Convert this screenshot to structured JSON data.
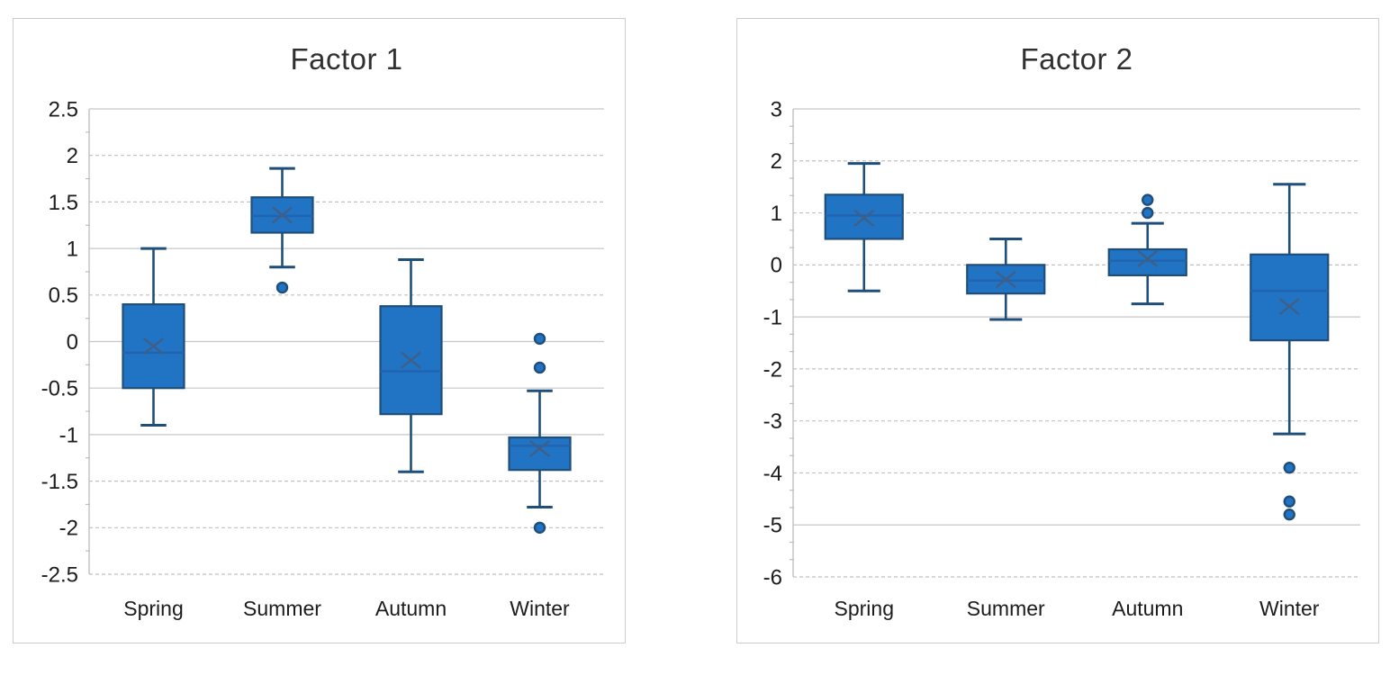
{
  "page": {
    "background": "#ffffff"
  },
  "colors": {
    "box_fill": "#2173C4",
    "box_border": "#1F4E79",
    "whisker": "#1F4E79",
    "median_line": "#2163AE",
    "mean_marker": "#3F5F87",
    "outlier_fill": "#2173C4",
    "outlier_ring": "#1F4E79",
    "gridline_dashed": "#C1C1C1",
    "gridline_solid": "#C7C7C7",
    "axis_line": "#BDBDBD",
    "tick_text": "#1C1C1C",
    "title_text": "#303030",
    "panel_border": "#CCCCCC"
  },
  "chart_data": [
    {
      "type": "boxplot",
      "title": "Factor 1",
      "xlabel": "",
      "ylabel": "",
      "categories": [
        "Spring",
        "Summer",
        "Autumn",
        "Winter"
      ],
      "ylim": [
        -2.5,
        2.5
      ],
      "y_major_step": 0.5,
      "y_tick_labels": [
        "2.5",
        "2",
        "1.5",
        "1",
        "0.5",
        "0",
        "-0.5",
        "-1",
        "-1.5",
        "-2",
        "-2.5"
      ],
      "grid": "horizontal-dashed",
      "legend": "none",
      "solid_gridlines": [
        2.5,
        1,
        0,
        -0.5,
        -1
      ],
      "boxes": [
        {
          "category": "Spring",
          "whisker_low": -0.9,
          "q1": -0.5,
          "median": -0.12,
          "mean": -0.05,
          "q3": 0.4,
          "whisker_high": 1.0,
          "outliers": []
        },
        {
          "category": "Summer",
          "whisker_low": 0.8,
          "q1": 1.17,
          "median": 1.35,
          "mean": 1.36,
          "q3": 1.55,
          "whisker_high": 1.86,
          "outliers": [
            0.58
          ]
        },
        {
          "category": "Autumn",
          "whisker_low": -1.4,
          "q1": -0.78,
          "median": -0.32,
          "mean": -0.2,
          "q3": 0.38,
          "whisker_high": 0.88,
          "outliers": []
        },
        {
          "category": "Winter",
          "whisker_low": -1.78,
          "q1": -1.38,
          "median": -1.12,
          "mean": -1.15,
          "q3": -1.03,
          "whisker_high": -0.53,
          "outliers": [
            0.03,
            -0.28,
            -2.0
          ]
        }
      ]
    },
    {
      "type": "boxplot",
      "title": "Factor 2",
      "xlabel": "",
      "ylabel": "",
      "categories": [
        "Spring",
        "Summer",
        "Autumn",
        "Winter"
      ],
      "ylim": [
        -6,
        3
      ],
      "y_major_step": 1,
      "y_tick_labels": [
        "3",
        "2",
        "1",
        "0",
        "-1",
        "-2",
        "-3",
        "-4",
        "-5",
        "-6"
      ],
      "grid": "horizontal-dashed",
      "legend": "none",
      "solid_gridlines": [
        3,
        -1,
        -5
      ],
      "boxes": [
        {
          "category": "Spring",
          "whisker_low": -0.5,
          "q1": 0.5,
          "median": 0.95,
          "mean": 0.9,
          "q3": 1.35,
          "whisker_high": 1.95,
          "outliers": []
        },
        {
          "category": "Summer",
          "whisker_low": -1.05,
          "q1": -0.55,
          "median": -0.3,
          "mean": -0.28,
          "q3": 0.0,
          "whisker_high": 0.5,
          "outliers": []
        },
        {
          "category": "Autumn",
          "whisker_low": -0.75,
          "q1": -0.2,
          "median": 0.08,
          "mean": 0.12,
          "q3": 0.3,
          "whisker_high": 0.8,
          "outliers": [
            1.25,
            1.0
          ]
        },
        {
          "category": "Winter",
          "whisker_low": -3.25,
          "q1": -1.45,
          "median": -0.5,
          "mean": -0.8,
          "q3": 0.2,
          "whisker_high": 1.55,
          "outliers": [
            -3.9,
            -4.55,
            -4.8
          ]
        }
      ]
    }
  ]
}
